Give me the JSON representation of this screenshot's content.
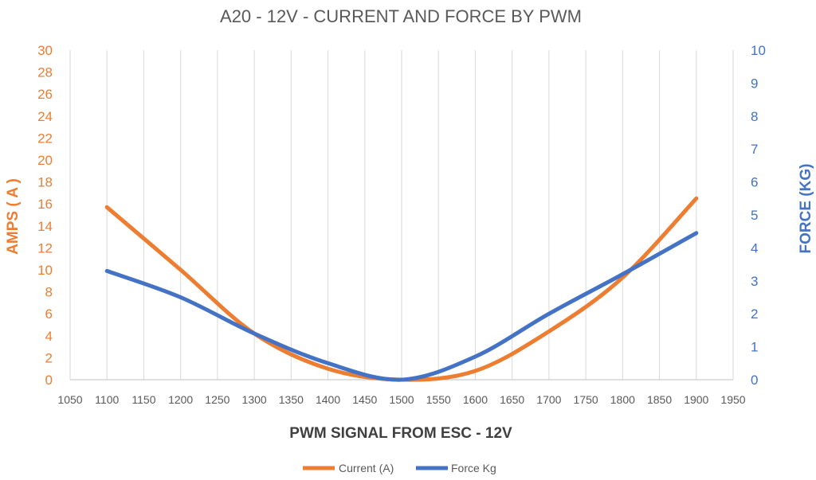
{
  "chart_data": {
    "type": "line",
    "title": "A20 - 12V - CURRENT AND FORCE BY PWM",
    "xlabel": "PWM SIGNAL FROM ESC - 12V",
    "ylabel_left": "AMPS ( A )",
    "ylabel_right": "FORCE (KG)",
    "xlim": [
      1050,
      1950
    ],
    "x_ticks": [
      1050,
      1100,
      1150,
      1200,
      1250,
      1300,
      1350,
      1400,
      1450,
      1500,
      1550,
      1600,
      1650,
      1700,
      1750,
      1800,
      1850,
      1900,
      1950
    ],
    "ylim_left": [
      0,
      30
    ],
    "y_ticks_left": [
      0,
      2,
      4,
      6,
      8,
      10,
      12,
      14,
      16,
      18,
      20,
      22,
      24,
      26,
      28,
      30
    ],
    "ylim_right": [
      0,
      10
    ],
    "y_ticks_right": [
      0,
      1,
      2,
      3,
      4,
      5,
      6,
      7,
      8,
      9,
      10
    ],
    "grid": "vertical",
    "legend": "bottom",
    "x": [
      1100,
      1200,
      1300,
      1400,
      1500,
      1600,
      1700,
      1800,
      1900
    ],
    "series": [
      {
        "name": "Current (A)",
        "axis": "left",
        "color": "#ED7D31",
        "values": [
          15.7,
          10.0,
          4.2,
          1.0,
          0.0,
          0.8,
          4.4,
          9.3,
          16.5
        ]
      },
      {
        "name": "Force Kg",
        "axis": "right",
        "color": "#4472C4",
        "values": [
          3.3,
          2.5,
          1.4,
          0.5,
          0.0,
          0.7,
          2.0,
          3.2,
          4.45
        ]
      }
    ]
  }
}
